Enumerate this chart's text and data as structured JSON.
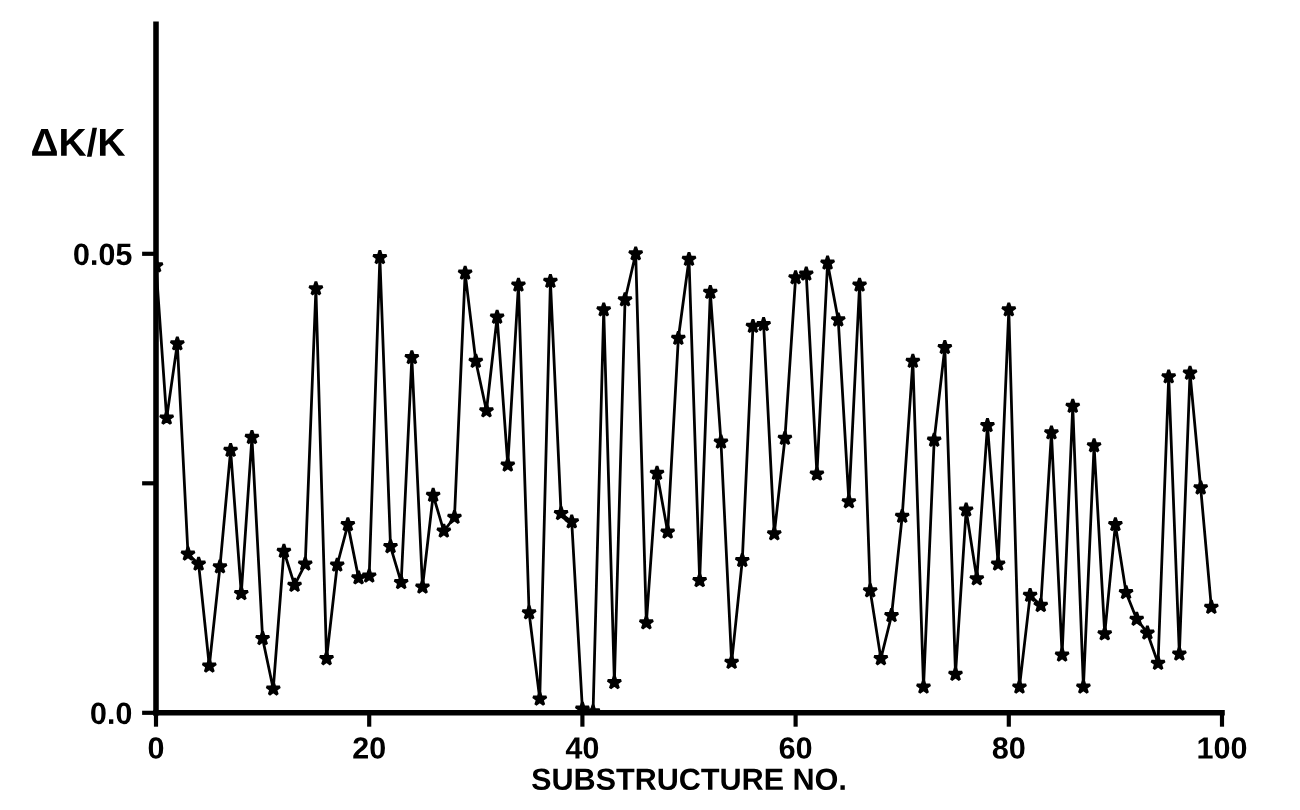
{
  "chart_data": {
    "type": "line",
    "xlabel": "SUBSTRUCTURE NO.",
    "ylabel": "ΔK/K",
    "x": [
      0,
      1,
      2,
      3,
      4,
      5,
      6,
      7,
      8,
      9,
      10,
      11,
      12,
      13,
      14,
      15,
      16,
      17,
      18,
      19,
      20,
      21,
      22,
      23,
      24,
      25,
      26,
      27,
      28,
      29,
      30,
      31,
      32,
      33,
      34,
      35,
      36,
      37,
      38,
      39,
      40,
      41,
      42,
      43,
      44,
      45,
      46,
      47,
      48,
      49,
      50,
      51,
      52,
      53,
      54,
      55,
      56,
      57,
      58,
      59,
      60,
      61,
      62,
      63,
      64,
      65,
      66,
      67,
      68,
      69,
      70,
      71,
      72,
      73,
      74,
      75,
      76,
      77,
      78,
      79,
      80,
      81,
      82,
      83,
      84,
      85,
      86,
      87,
      88,
      89,
      90,
      91,
      92,
      93,
      94,
      95,
      96,
      97,
      98,
      99
    ],
    "series": [
      {
        "color": "#000000",
        "values": [
          0.0487,
          0.0321,
          0.0402,
          0.0173,
          0.0162,
          0.0051,
          0.0159,
          0.0286,
          0.013,
          0.03,
          0.0081,
          0.0026,
          0.0176,
          0.0139,
          0.0162,
          0.0462,
          0.0059,
          0.0161,
          0.0205,
          0.0147,
          0.0149,
          0.0496,
          0.0181,
          0.0142,
          0.0387,
          0.0137,
          0.0237,
          0.0198,
          0.0213,
          0.0479,
          0.0383,
          0.0329,
          0.0431,
          0.027,
          0.0466,
          0.0109,
          0.0015,
          0.047,
          0.0217,
          0.0208,
          0.0004,
          0.0001,
          0.0439,
          0.0033,
          0.045,
          0.05,
          0.0098,
          0.0261,
          0.0197,
          0.0408,
          0.0494,
          0.0144,
          0.0458,
          0.0295,
          0.0055,
          0.0166,
          0.0421,
          0.0423,
          0.0195,
          0.0299,
          0.0474,
          0.0478,
          0.026,
          0.049,
          0.0428,
          0.023,
          0.0466,
          0.0133,
          0.0059,
          0.0106,
          0.0214,
          0.0383,
          0.0028,
          0.0297,
          0.0398,
          0.0042,
          0.0221,
          0.0146,
          0.0313,
          0.0162,
          0.0439,
          0.0028,
          0.0128,
          0.0117,
          0.0305,
          0.0063,
          0.0334,
          0.0028,
          0.0291,
          0.0086,
          0.0205,
          0.0131,
          0.0102,
          0.0087,
          0.0054,
          0.0366,
          0.0064,
          0.037,
          0.0245,
          0.0115
        ]
      }
    ],
    "xlim": [
      0,
      100
    ],
    "xticks": [
      0,
      20,
      40,
      60,
      80,
      100
    ],
    "ylim": [
      0,
      0.075
    ],
    "yticks": [
      {
        "value": 0,
        "label": "0.0"
      },
      {
        "value": 0.025,
        "label": null
      },
      {
        "value": 0.05,
        "label": "0.05"
      }
    ],
    "marker": "star",
    "line_style": "solid",
    "grid": false,
    "legend": false
  }
}
